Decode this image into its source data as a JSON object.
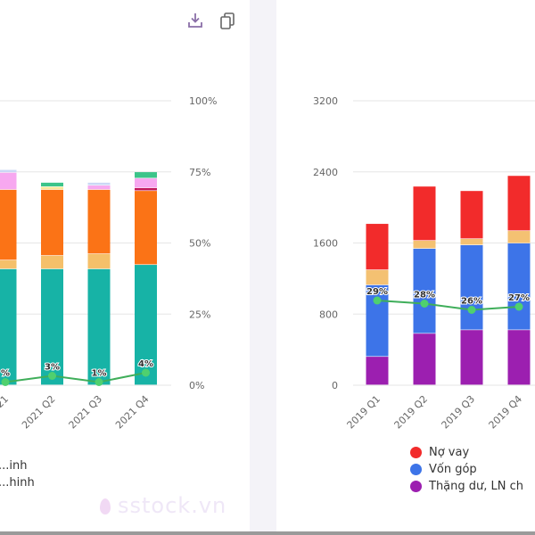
{
  "toolbar": {
    "download_icon": "download-icon",
    "copy_icon": "copy-icon"
  },
  "watermark": "sstock.vn",
  "chart_data": [
    {
      "type": "bar",
      "stacked": true,
      "title": "",
      "xlabel": "",
      "ylabel": "",
      "y_axis_position": "right",
      "ylim": [
        0,
        100
      ],
      "y_ticks": [
        "0%",
        "25%",
        "50%",
        "75%",
        "100%"
      ],
      "categories": [
        "2021 Q1",
        "2021 Q2",
        "2021 Q3",
        "2021 Q4"
      ],
      "visible_category_labels": [
        "21",
        "2021 Q2",
        "2021 Q3",
        "2021 Q4"
      ],
      "grid": true,
      "series": [
        {
          "name": "teal",
          "color": "#17b3a6",
          "values": [
            40.8,
            40.8,
            40.8,
            42.3
          ]
        },
        {
          "name": "tan",
          "color": "#f5c06a",
          "values": [
            3.1,
            4.7,
            5.3,
            0
          ]
        },
        {
          "name": "orange",
          "color": "#fb7316",
          "values": [
            24.8,
            23.2,
            22.6,
            26.0
          ]
        },
        {
          "name": "light-yellow",
          "color": "#fbe89b",
          "values": [
            0,
            1.0,
            0,
            0
          ]
        },
        {
          "name": "dark-red",
          "color": "#c2185b",
          "values": [
            0,
            0,
            0,
            1.0
          ]
        },
        {
          "name": "pink",
          "color": "#f7a8f0",
          "values": [
            6.0,
            0,
            1.5,
            3.4
          ]
        },
        {
          "name": "light-blue",
          "color": "#cbd8f5",
          "values": [
            1.0,
            0,
            1.0,
            0
          ]
        },
        {
          "name": "green",
          "color": "#3cc48a",
          "values": [
            0,
            1.5,
            0,
            2.2
          ]
        }
      ],
      "line": {
        "name": "ratio",
        "color": "#3fae5a",
        "values": [
          1,
          3,
          1,
          4
        ],
        "labels": [
          "%",
          "3%",
          "1%",
          "4%"
        ]
      },
      "legend": {
        "placement": "bottom-left",
        "items": [
          "...inh",
          "...hinh"
        ]
      }
    },
    {
      "type": "bar",
      "stacked": true,
      "title": "",
      "xlabel": "",
      "ylabel": "",
      "y_axis_position": "left",
      "ylim": [
        0,
        3200
      ],
      "y_ticks": [
        "0",
        "800",
        "1600",
        "2400",
        "3200"
      ],
      "categories": [
        "2019 Q1",
        "2019 Q2",
        "2019 Q3",
        "2019 Q4"
      ],
      "grid": true,
      "series": [
        {
          "name": "Thặng dư, LN chưa phân phối",
          "color": "#9c1fb0",
          "values": [
            320,
            580,
            620,
            620
          ]
        },
        {
          "name": "Vốn góp",
          "color": "#3d74e8",
          "values": [
            805,
            955,
            955,
            975
          ]
        },
        {
          "name": "tan",
          "color": "#f4c172",
          "values": [
            170,
            90,
            70,
            140
          ]
        },
        {
          "name": "Nợ vay",
          "color": "#f22b2b",
          "values": [
            520,
            610,
            540,
            620
          ]
        }
      ],
      "line": {
        "name": "ratio",
        "color": "#3fae5a",
        "values": [
          29,
          28,
          26,
          27
        ],
        "labels": [
          "29%",
          "28%",
          "26%",
          "27%"
        ]
      },
      "legend": {
        "placement": "bottom",
        "items": [
          {
            "label": "Nợ vay",
            "color": "#f22b2b"
          },
          {
            "label": "Vốn góp",
            "color": "#3d74e8"
          },
          {
            "label": "Thặng dư, LN ch",
            "color": "#9c1fb0"
          }
        ]
      }
    }
  ]
}
